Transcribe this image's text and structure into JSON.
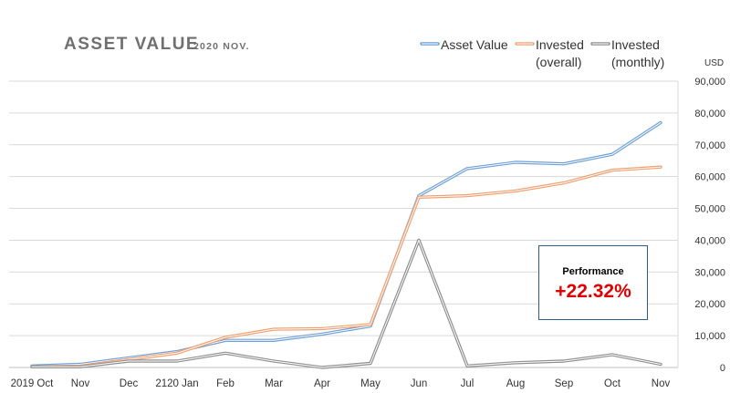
{
  "title": "ASSET VALUE",
  "subtitle": "2020 NOV.",
  "unit_label": "USD",
  "performance": {
    "label": "Performance",
    "value": "+22.32%"
  },
  "colors": {
    "asset_value": "#6fa0d8",
    "invested_overall": "#f0a070",
    "invested_monthly": "#909090",
    "performance_value": "#e00000",
    "box_border": "#2e5f8a"
  },
  "chart_data": {
    "type": "line",
    "categories": [
      "2019 Oct",
      "Nov",
      "Dec",
      "2120 Jan",
      "Feb",
      "Mar",
      "Apr",
      "May",
      "Jun",
      "Jul",
      "Aug",
      "Sep",
      "Oct",
      "Nov"
    ],
    "series": [
      {
        "key": "asset_value",
        "name_lines": [
          "Asset Value"
        ],
        "values": [
          500,
          1000,
          3000,
          5000,
          8500,
          8500,
          10500,
          13000,
          54000,
          62500,
          64500,
          64000,
          67000,
          77000
        ]
      },
      {
        "key": "invested_overall",
        "name_lines": [
          "Invested",
          "(overall)"
        ],
        "values": [
          200,
          400,
          2500,
          4500,
          9500,
          12000,
          12200,
          13500,
          53500,
          54000,
          55500,
          58000,
          62000,
          63000
        ]
      },
      {
        "key": "invested_monthly",
        "name_lines": [
          "Invested",
          "(monthly)"
        ],
        "values": [
          200,
          200,
          2000,
          2000,
          4500,
          2000,
          0,
          1300,
          40000,
          500,
          1500,
          2000,
          4000,
          1000
        ]
      }
    ],
    "y_ticks": [
      "0",
      "10,000",
      "20,000",
      "30,000",
      "40,000",
      "50,000",
      "60,000",
      "70,000",
      "80,000",
      "90,000"
    ],
    "ylim": [
      0,
      90000
    ],
    "y_axis_side": "right",
    "grid": true,
    "legend_position": "top-right"
  }
}
